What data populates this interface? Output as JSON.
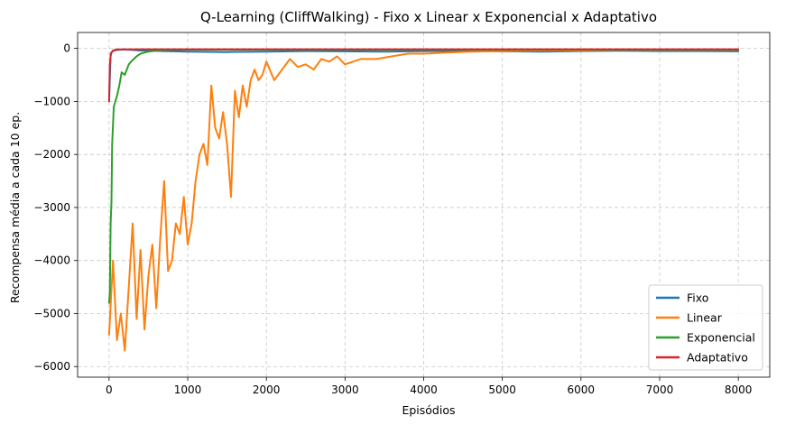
{
  "chart_data": {
    "type": "line",
    "title": "Q-Learning (CliffWalking) - Fixo x Linear x Exponencial x Adaptativo",
    "xlabel": "Episódios",
    "ylabel": "Recompensa média a cada 10 ep.",
    "xlim": [
      -400,
      8400
    ],
    "ylim": [
      -6200,
      300
    ],
    "xticks": [
      0,
      1000,
      2000,
      3000,
      4000,
      5000,
      6000,
      7000,
      8000
    ],
    "xtick_labels": [
      "0",
      "1000",
      "2000",
      "3000",
      "4000",
      "5000",
      "6000",
      "7000",
      "8000"
    ],
    "yticks": [
      0,
      -1000,
      -2000,
      -3000,
      -4000,
      -5000,
      -6000
    ],
    "ytick_labels": [
      "0",
      "−1000",
      "−2000",
      "−3000",
      "−4000",
      "−5000",
      "−6000"
    ],
    "grid": true,
    "legend_position": "bottom-right",
    "series": [
      {
        "name": "Fixo",
        "color": "#1f77b4",
        "x": [
          0,
          20,
          40,
          60,
          100,
          200,
          400,
          700,
          1000,
          1500,
          2000,
          2500,
          3000,
          3500,
          4000,
          4500,
          5000,
          5500,
          6000,
          6500,
          7000,
          7500,
          8000
        ],
        "y": [
          -1000,
          -100,
          -60,
          -40,
          -30,
          -20,
          -40,
          -50,
          -60,
          -70,
          -60,
          -50,
          -55,
          -60,
          -50,
          -50,
          -55,
          -60,
          -50,
          -45,
          -50,
          -50,
          -55
        ]
      },
      {
        "name": "Linear",
        "color": "#ff7f0e",
        "x": [
          0,
          50,
          100,
          150,
          200,
          250,
          300,
          350,
          400,
          450,
          500,
          550,
          600,
          650,
          700,
          750,
          800,
          850,
          900,
          950,
          1000,
          1050,
          1100,
          1150,
          1200,
          1250,
          1300,
          1350,
          1400,
          1450,
          1500,
          1550,
          1600,
          1650,
          1700,
          1750,
          1800,
          1850,
          1900,
          1950,
          2000,
          2100,
          2200,
          2300,
          2400,
          2500,
          2600,
          2700,
          2800,
          2900,
          3000,
          3200,
          3400,
          3600,
          3800,
          4000,
          4300,
          4600,
          5000,
          5500,
          6000,
          6500,
          7000,
          7500,
          8000
        ],
        "y": [
          -5400,
          -4000,
          -5500,
          -5000,
          -5700,
          -4500,
          -3300,
          -5100,
          -3800,
          -5300,
          -4300,
          -3700,
          -4900,
          -3600,
          -2500,
          -4200,
          -4000,
          -3300,
          -3500,
          -2800,
          -3700,
          -3300,
          -2500,
          -2000,
          -1800,
          -2200,
          -700,
          -1500,
          -1700,
          -1200,
          -1800,
          -2800,
          -800,
          -1300,
          -700,
          -1100,
          -600,
          -400,
          -600,
          -500,
          -250,
          -600,
          -400,
          -200,
          -350,
          -300,
          -400,
          -200,
          -250,
          -150,
          -300,
          -200,
          -200,
          -150,
          -100,
          -100,
          -80,
          -60,
          -50,
          -40,
          -40,
          -30,
          -30,
          -30,
          -30
        ]
      },
      {
        "name": "Exponencial",
        "color": "#2ca02c",
        "x": [
          0,
          10,
          20,
          30,
          40,
          60,
          80,
          100,
          130,
          160,
          200,
          250,
          300,
          350,
          400,
          450,
          500,
          600,
          700,
          800,
          8000
        ],
        "y": [
          -4800,
          -4600,
          -3300,
          -2900,
          -1800,
          -1100,
          -1000,
          -900,
          -700,
          -450,
          -500,
          -300,
          -220,
          -150,
          -100,
          -80,
          -60,
          -40,
          -30,
          -25,
          -25
        ]
      },
      {
        "name": "Adaptativo",
        "color": "#d62728",
        "x": [
          0,
          10,
          20,
          30,
          50,
          80,
          120,
          200,
          400,
          1000,
          2000,
          4000,
          6000,
          8000
        ],
        "y": [
          -1000,
          -300,
          -150,
          -80,
          -40,
          -25,
          -20,
          -18,
          -17,
          -16,
          -16,
          -16,
          -16,
          -16
        ]
      }
    ]
  }
}
